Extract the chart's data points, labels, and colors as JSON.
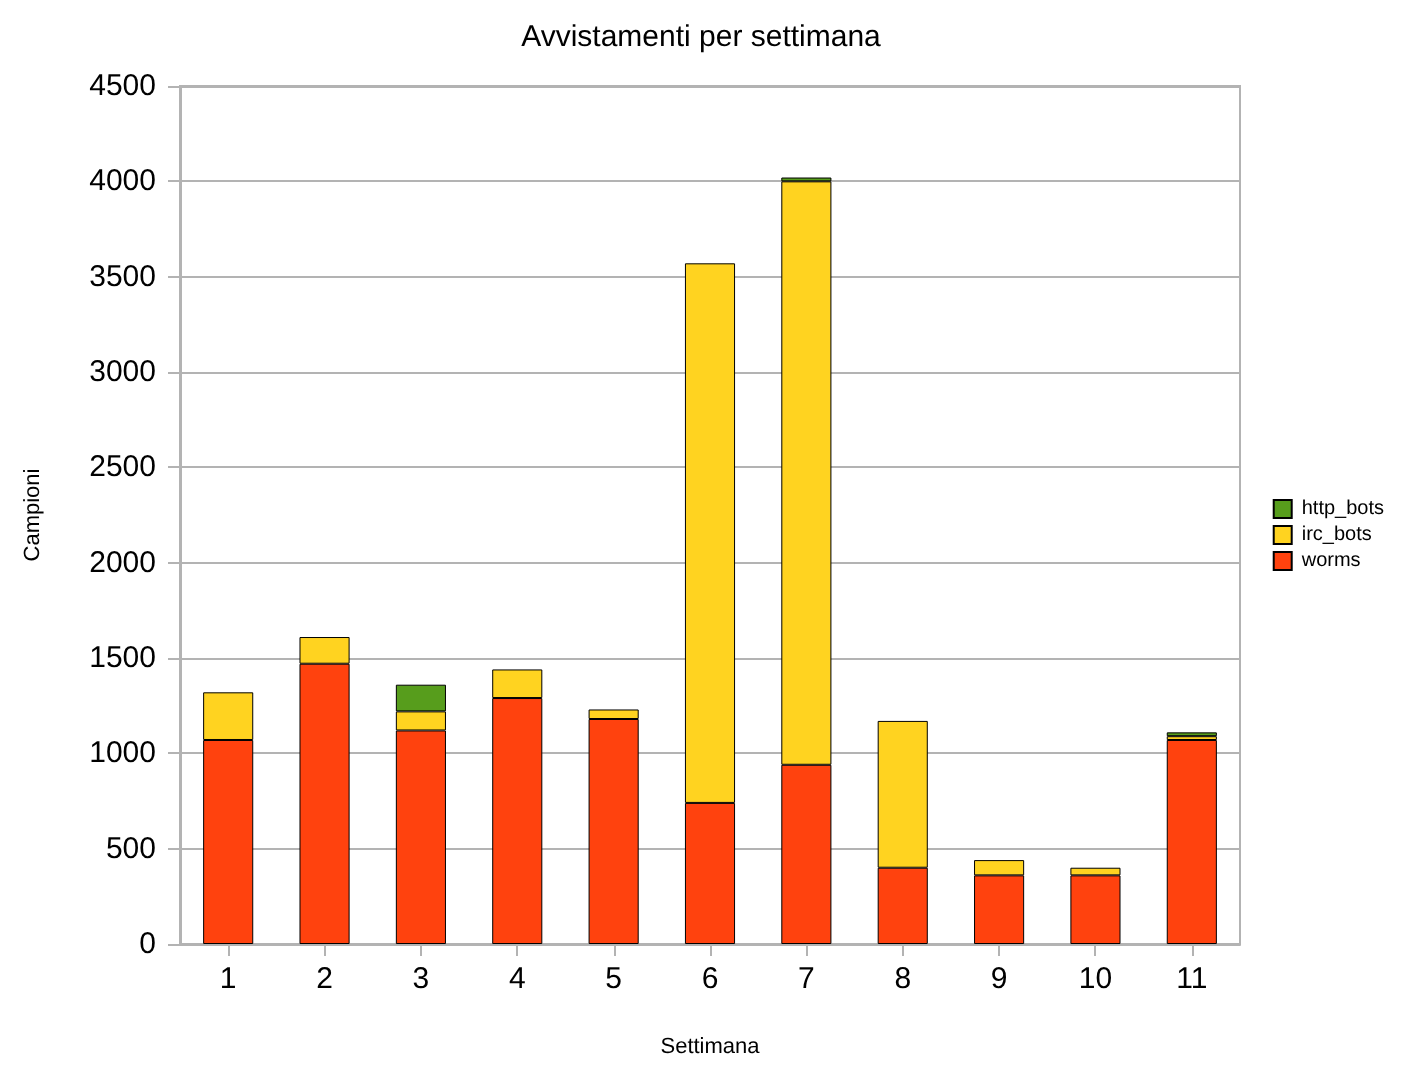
{
  "chart_data": {
    "type": "bar",
    "title": "Avvistamenti per settimana",
    "xlabel": "Settimana",
    "ylabel": "Campioni",
    "categories": [
      "1",
      "2",
      "3",
      "4",
      "5",
      "6",
      "7",
      "8",
      "9",
      "10",
      "11"
    ],
    "stacked": true,
    "series": [
      {
        "name": "worms",
        "color": "#ff420e",
        "values": [
          1070,
          1470,
          1120,
          1290,
          1180,
          740,
          940,
          400,
          360,
          360,
          1070
        ]
      },
      {
        "name": "irc_bots",
        "color": "#ffd320",
        "values": [
          250,
          140,
          100,
          150,
          50,
          2830,
          3060,
          770,
          80,
          40,
          20
        ]
      },
      {
        "name": "http_bots",
        "color": "#579d1c",
        "values": [
          0,
          0,
          140,
          0,
          0,
          0,
          20,
          0,
          0,
          0,
          20
        ]
      }
    ],
    "ylim": [
      0,
      4500
    ],
    "yticks": [
      0,
      500,
      1000,
      1500,
      2000,
      2500,
      3000,
      3500,
      4000,
      4500
    ],
    "grid": "y",
    "legend": "right"
  }
}
